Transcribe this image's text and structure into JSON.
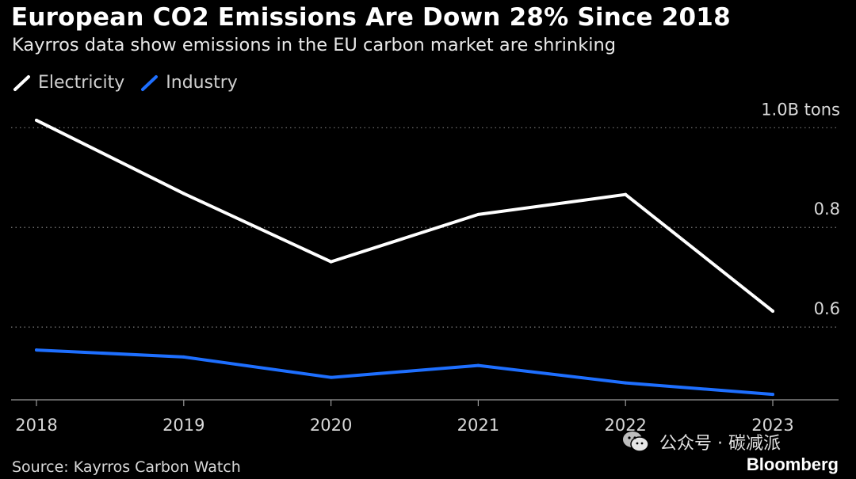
{
  "header": {
    "title": "European CO2 Emissions Are Down 28% Since 2018",
    "subtitle": "Kayrros data show emissions in the EU carbon market are shrinking"
  },
  "footer": {
    "source": "Source: Kayrros Carbon Watch",
    "brand": "Bloomberg",
    "watermark": "公众号 · 碳减派"
  },
  "colors": {
    "background": "#000000",
    "electricity": "#ffffff",
    "industry": "#1e6fff",
    "grid": "#7a7a7a",
    "tick_text": "#d8d8d8"
  },
  "chart_data": {
    "type": "line",
    "x": [
      "2018",
      "2019",
      "2020",
      "2021",
      "2022",
      "2023"
    ],
    "series": [
      {
        "name": "Electricity",
        "values": [
          1.015,
          0.868,
          0.731,
          0.826,
          0.866,
          0.632
        ]
      },
      {
        "name": "Industry",
        "values": [
          0.554,
          0.54,
          0.499,
          0.523,
          0.488,
          0.465
        ]
      }
    ],
    "ylim": [
      0.454,
      1.018
    ],
    "yticks": [
      {
        "value": 1.0,
        "label": "1.0B tons"
      },
      {
        "value": 0.8,
        "label": "0.8"
      },
      {
        "value": 0.6,
        "label": "0.6"
      }
    ],
    "legend_position": "top-left",
    "grid": "horizontal-dotted"
  }
}
